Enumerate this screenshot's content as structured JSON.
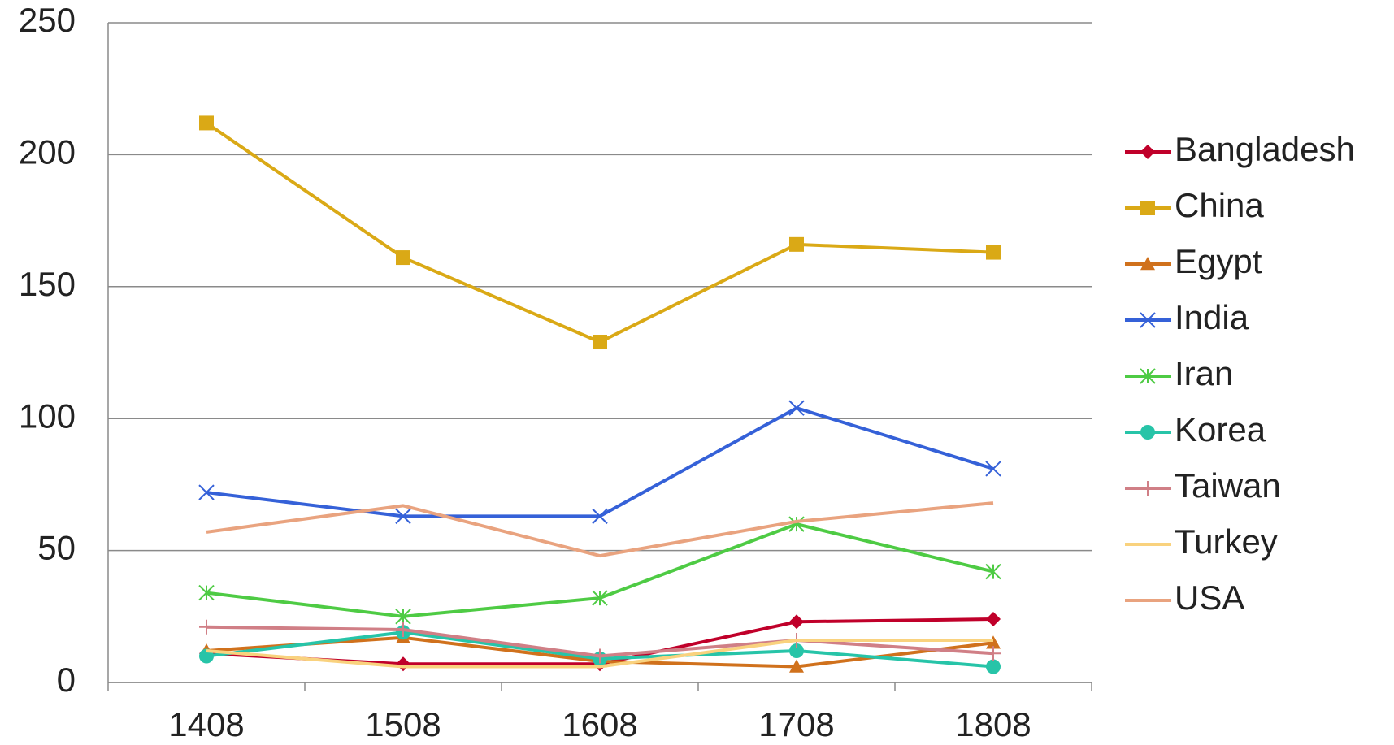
{
  "chart_data": {
    "type": "line",
    "categories": [
      "1408",
      "1508",
      "1608",
      "1708",
      "1808"
    ],
    "ylim": [
      0,
      250
    ],
    "yticks": [
      0,
      50,
      100,
      150,
      200,
      250
    ],
    "grid": true,
    "legend": "right",
    "series": [
      {
        "name": "Bangladesh",
        "color": "#c0002a",
        "marker": "diamond",
        "values": [
          11,
          7,
          7,
          23,
          24
        ]
      },
      {
        "name": "China",
        "color": "#daa916",
        "marker": "square",
        "values": [
          212,
          161,
          129,
          166,
          163
        ]
      },
      {
        "name": "Egypt",
        "color": "#d0711c",
        "marker": "triangle",
        "values": [
          12,
          17,
          8,
          6,
          15
        ]
      },
      {
        "name": "India",
        "color": "#3561d8",
        "marker": "x",
        "values": [
          72,
          63,
          63,
          104,
          81
        ]
      },
      {
        "name": "Iran",
        "color": "#4ecb44",
        "marker": "star",
        "values": [
          34,
          25,
          32,
          60,
          42
        ]
      },
      {
        "name": "Korea",
        "color": "#27c4a8",
        "marker": "circle",
        "values": [
          10,
          19,
          9,
          12,
          6
        ]
      },
      {
        "name": "Taiwan",
        "color": "#d07f86",
        "marker": "plus",
        "values": [
          21,
          20,
          10,
          16,
          11
        ]
      },
      {
        "name": "Turkey",
        "color": "#f9d27e",
        "marker": "none",
        "values": [
          12,
          6,
          6,
          16,
          16
        ]
      },
      {
        "name": "USA",
        "color": "#e9a37f",
        "marker": "none",
        "values": [
          57,
          67,
          48,
          61,
          68
        ]
      }
    ]
  }
}
